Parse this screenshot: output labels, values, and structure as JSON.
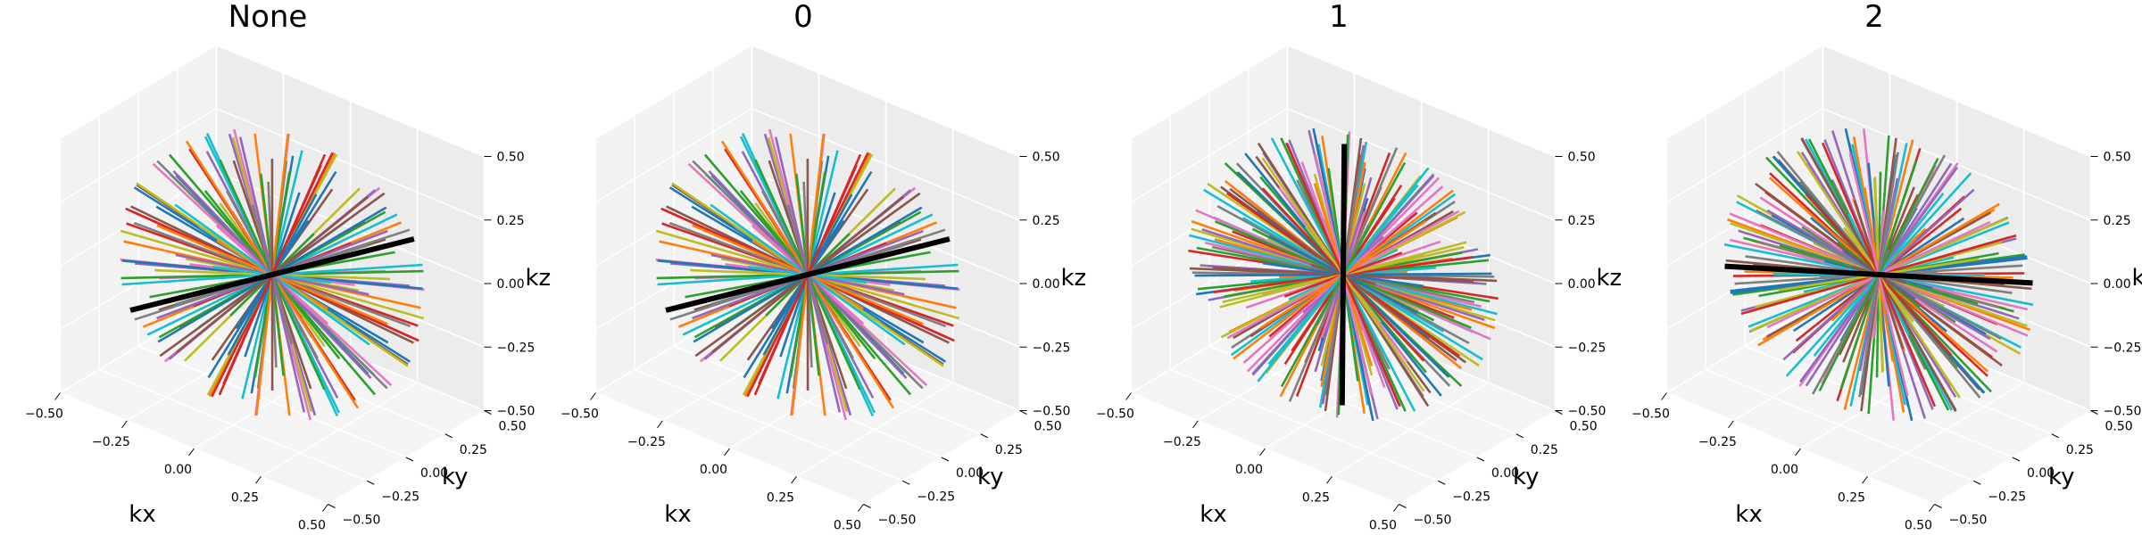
{
  "chart_data": [
    {
      "type": "line3d",
      "title": "None",
      "xlabel": "kx",
      "ylabel": "ky",
      "zlabel": "kz",
      "xlim": [
        -0.5,
        0.5
      ],
      "ylim": [
        -0.5,
        0.5
      ],
      "zlim": [
        -0.5,
        0.5
      ],
      "xticks": [
        "−0.50",
        "−0.25",
        "0.00",
        "0.25",
        "0.50"
      ],
      "yticks": [
        "−0.50",
        "−0.25",
        "0.00",
        "0.25",
        "0.50"
      ],
      "zticks": [
        "−0.50",
        "−0.25",
        "0.00",
        "0.25",
        "0.50"
      ],
      "spoke_count": 96,
      "spoke_radius": 0.5,
      "seed": 11,
      "highlight": {
        "color": "#000000",
        "dir": [
          0.55,
          0.5,
          0.28
        ]
      },
      "grid": true
    },
    {
      "type": "line3d",
      "title": "0",
      "xlabel": "kx",
      "ylabel": "ky",
      "zlabel": "kz",
      "xlim": [
        -0.5,
        0.5
      ],
      "ylim": [
        -0.5,
        0.5
      ],
      "zlim": [
        -0.5,
        0.5
      ],
      "xticks": [
        "−0.50",
        "−0.25",
        "0.00",
        "0.25",
        "0.50"
      ],
      "yticks": [
        "−0.50",
        "−0.25",
        "0.00",
        "0.25",
        "0.50"
      ],
      "zticks": [
        "−0.50",
        "−0.25",
        "0.00",
        "0.25",
        "0.50"
      ],
      "spoke_count": 96,
      "spoke_radius": 0.5,
      "seed": 11,
      "highlight": {
        "color": "#000000",
        "dir": [
          0.55,
          0.5,
          0.28
        ]
      },
      "grid": true
    },
    {
      "type": "line3d",
      "title": "1",
      "xlabel": "kx",
      "ylabel": "ky",
      "zlabel": "kz",
      "xlim": [
        -0.5,
        0.5
      ],
      "ylim": [
        -0.5,
        0.5
      ],
      "zlim": [
        -0.5,
        0.5
      ],
      "xticks": [
        "−0.50",
        "−0.25",
        "0.00",
        "0.25",
        "0.50"
      ],
      "yticks": [
        "−0.50",
        "−0.25",
        "0.00",
        "0.25",
        "0.50"
      ],
      "zticks": [
        "−0.50",
        "−0.25",
        "0.00",
        "0.25",
        "0.50"
      ],
      "spoke_count": 128,
      "spoke_radius": 0.5,
      "seed": 37,
      "highlight": {
        "color": "#000000",
        "dir": [
          0.2,
          -0.35,
          -0.3
        ]
      },
      "grid": true
    },
    {
      "type": "line3d",
      "title": "2",
      "xlabel": "kx",
      "ylabel": "ky",
      "zlabel": "kz",
      "xlim": [
        -0.5,
        0.5
      ],
      "ylim": [
        -0.5,
        0.5
      ],
      "zlim": [
        -0.5,
        0.5
      ],
      "xticks": [
        "−0.50",
        "−0.25",
        "0.00",
        "0.25",
        "0.50"
      ],
      "yticks": [
        "−0.50",
        "−0.25",
        "0.00",
        "0.25",
        "0.50"
      ],
      "zticks": [
        "−0.50",
        "−0.25",
        "0.00",
        "0.25",
        "0.50"
      ],
      "spoke_count": 128,
      "spoke_radius": 0.5,
      "seed": 73,
      "highlight": {
        "color": "#000000",
        "dir": [
          0.5,
          0.35,
          0.05
        ]
      },
      "grid": true
    }
  ],
  "palette": [
    "#1f77b4",
    "#ff7f0e",
    "#2ca02c",
    "#d62728",
    "#9467bd",
    "#8c564b",
    "#e377c2",
    "#7f7f7f",
    "#bcbd22",
    "#17becf"
  ]
}
